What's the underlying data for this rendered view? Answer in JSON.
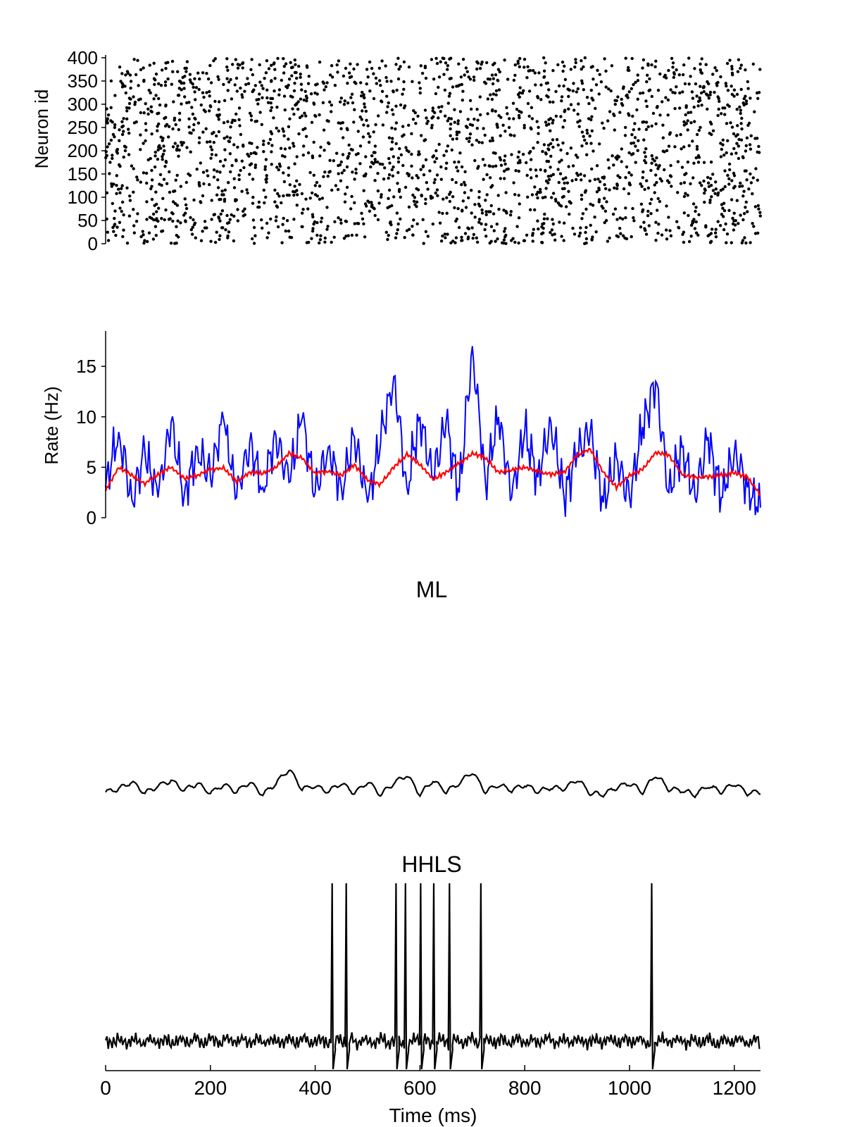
{
  "chart_data": [
    {
      "type": "scatter",
      "panel": "raster",
      "ylabel": "Neuron id",
      "xlim": [
        0,
        1250
      ],
      "ylim": [
        0,
        400
      ],
      "yticks": [
        0,
        50,
        100,
        150,
        200,
        250,
        300,
        350,
        400
      ],
      "marker_color": "#000000",
      "spike_count_approx": 2300,
      "spike_times_ms_sample": [
        2,
        14,
        27,
        41,
        55,
        68,
        83,
        97,
        112,
        128,
        143,
        158,
        171,
        186,
        201,
        217,
        232,
        249,
        263,
        278
      ],
      "spike_neuron_ids_sample": [
        290,
        35,
        380,
        120,
        260,
        15,
        330,
        85,
        200,
        370,
        45,
        150,
        310,
        240,
        5,
        95,
        355,
        180,
        60,
        275
      ]
    },
    {
      "type": "line",
      "panel": "rate",
      "ylabel": "Rate (Hz)",
      "xlim": [
        0,
        1250
      ],
      "ylim": [
        0,
        18.5
      ],
      "yticks": [
        0,
        5,
        10,
        15
      ],
      "series": [
        {
          "color": "#0000ff",
          "x": [
            0,
            25,
            50,
            75,
            100,
            125,
            150,
            175,
            200,
            225,
            250,
            275,
            300,
            325,
            350,
            375,
            400,
            425,
            450,
            475,
            500,
            525,
            550,
            575,
            600,
            625,
            650,
            675,
            700,
            725,
            750,
            775,
            800,
            825,
            850,
            875,
            900,
            925,
            950,
            975,
            1000,
            1025,
            1050,
            1075,
            1100,
            1125,
            1150,
            1175,
            1200,
            1225,
            1250
          ],
          "values": [
            3.0,
            8.5,
            1.8,
            6.5,
            2.0,
            9.5,
            2.2,
            7.0,
            4.0,
            9.8,
            2.0,
            7.5,
            3.0,
            8.2,
            3.5,
            9.8,
            2.5,
            7.0,
            3.0,
            8.0,
            1.5,
            7.5,
            14.0,
            3.0,
            10.0,
            4.0,
            9.5,
            2.5,
            17.0,
            3.5,
            10.0,
            2.0,
            8.5,
            4.0,
            9.5,
            2.0,
            6.5,
            8.5,
            1.5,
            6.0,
            2.0,
            9.0,
            13.5,
            2.5,
            7.0,
            2.0,
            8.0,
            2.0,
            6.5,
            3.0,
            1.0
          ]
        },
        {
          "color": "#ff0000",
          "x": [
            0,
            25,
            50,
            75,
            100,
            125,
            150,
            175,
            200,
            225,
            250,
            275,
            300,
            325,
            350,
            375,
            400,
            425,
            450,
            475,
            500,
            525,
            550,
            575,
            600,
            625,
            650,
            675,
            700,
            725,
            750,
            775,
            800,
            825,
            850,
            875,
            900,
            925,
            950,
            975,
            1000,
            1025,
            1050,
            1075,
            1100,
            1125,
            1150,
            1175,
            1200,
            1225,
            1250
          ],
          "values": [
            2.7,
            5.0,
            4.2,
            3.4,
            4.3,
            5.0,
            3.9,
            4.2,
            4.8,
            4.9,
            3.6,
            4.5,
            4.4,
            5.0,
            6.4,
            5.9,
            4.4,
            4.6,
            4.2,
            5.2,
            3.7,
            3.3,
            5.0,
            6.3,
            5.3,
            3.8,
            4.5,
            5.4,
            6.4,
            5.9,
            4.5,
            4.7,
            5.0,
            4.6,
            4.3,
            4.5,
            6.2,
            6.8,
            4.5,
            3.0,
            4.2,
            4.8,
            6.5,
            6.2,
            4.3,
            4.0,
            4.1,
            4.2,
            4.5,
            4.0,
            2.3
          ]
        }
      ]
    },
    {
      "type": "line",
      "panel": "ML",
      "title": "ML",
      "xlim": [
        0,
        1250
      ],
      "series": [
        {
          "color": "#000000",
          "x": [
            0,
            25,
            50,
            75,
            100,
            125,
            150,
            175,
            200,
            225,
            250,
            275,
            300,
            325,
            350,
            375,
            400,
            425,
            450,
            475,
            500,
            525,
            550,
            575,
            600,
            625,
            650,
            675,
            700,
            725,
            750,
            775,
            800,
            825,
            850,
            875,
            900,
            925,
            950,
            975,
            1000,
            1025,
            1050,
            1075,
            1100,
            1125,
            1150,
            1175,
            1200,
            1225,
            1250
          ],
          "values": [
            0.1,
            0.2,
            0.45,
            0.05,
            0.3,
            0.5,
            0.15,
            0.4,
            0.05,
            0.35,
            0.1,
            0.45,
            0.0,
            0.4,
            0.9,
            0.2,
            0.3,
            0.1,
            0.4,
            0.05,
            0.45,
            0.0,
            0.4,
            0.7,
            0.0,
            0.5,
            0.1,
            0.4,
            0.8,
            0.1,
            0.35,
            0.15,
            0.35,
            0.1,
            0.25,
            0.2,
            0.55,
            0.05,
            0.0,
            0.25,
            0.4,
            0.1,
            0.7,
            0.2,
            0.15,
            0.0,
            0.3,
            0.1,
            0.4,
            0.05,
            0.1
          ]
        }
      ]
    },
    {
      "type": "line",
      "panel": "HHLS",
      "title": "HHLS",
      "xlabel": "Time (ms)",
      "xlim": [
        0,
        1250
      ],
      "xticks": [
        0,
        200,
        400,
        600,
        800,
        1000,
        1200
      ],
      "spike_times_ms": [
        433,
        460,
        555,
        573,
        602,
        627,
        657,
        717,
        1043
      ],
      "series": [
        {
          "color": "#000000",
          "baseline_level": 0.18
        }
      ]
    }
  ]
}
